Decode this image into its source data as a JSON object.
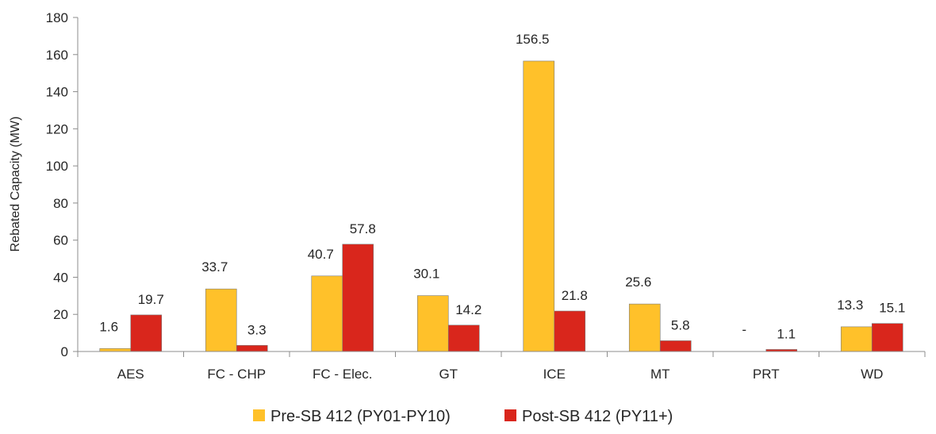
{
  "chart_data": {
    "type": "bar",
    "title": "",
    "xlabel": "",
    "ylabel": "Rebated Capacity (MW)",
    "ylim": [
      0,
      180
    ],
    "yticks": [
      0,
      20,
      40,
      60,
      80,
      100,
      120,
      140,
      160,
      180
    ],
    "grid": false,
    "legend_position": "bottom",
    "categories": [
      "AES",
      "FC - CHP",
      "FC - Elec.",
      "GT",
      "ICE",
      "MT",
      "PRT",
      "WD"
    ],
    "series": [
      {
        "name": "Pre-SB 412 (PY01-PY10)",
        "color": "#FFC12A",
        "values": [
          1.6,
          33.7,
          40.7,
          30.1,
          156.5,
          25.6,
          0,
          13.3
        ],
        "labels": [
          "1.6",
          "33.7",
          "40.7",
          "30.1",
          "156.5",
          "25.6",
          "-",
          "13.3"
        ]
      },
      {
        "name": "Post-SB 412 (PY11+)",
        "color": "#D9261C",
        "values": [
          19.7,
          3.3,
          57.8,
          14.2,
          21.8,
          5.8,
          1.1,
          15.1
        ],
        "labels": [
          "19.7",
          "3.3",
          "57.8",
          "14.2",
          "21.8",
          "5.8",
          "1.1",
          "15.1"
        ]
      }
    ]
  }
}
